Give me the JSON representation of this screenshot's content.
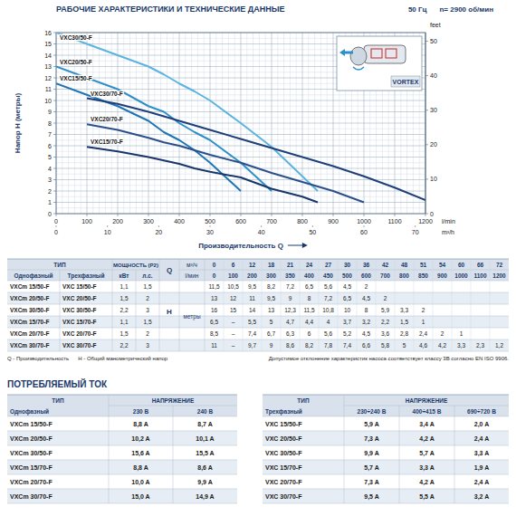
{
  "header": {
    "title": "РАБОЧИЕ ХАРАКТЕРИСТИКИ И ТЕХНИЧЕСКИЕ ДАННЫЕ",
    "frequency": "50 Гц",
    "speed": "n= 2900 об/мин"
  },
  "inset": {
    "label": "VORTEX"
  },
  "chart_data": {
    "type": "line",
    "ylabel": "Напор H (метры)",
    "y2label": "feet",
    "xlabel": "Производительность Q",
    "xunit": "l/min",
    "x2unit": "m³/h",
    "xlim": [
      0,
      1200
    ],
    "xticks": [
      0,
      100,
      200,
      300,
      400,
      500,
      600,
      700,
      800,
      900,
      1000,
      1100,
      1200
    ],
    "x2lim": [
      0,
      72
    ],
    "x2ticks": [
      0,
      10,
      20,
      30,
      40,
      50,
      60,
      70
    ],
    "ylim": [
      0,
      16
    ],
    "yticks": [
      0,
      1,
      2,
      3,
      4,
      5,
      6,
      7,
      8,
      9,
      10,
      11,
      12,
      13,
      14,
      15,
      16
    ],
    "y2lim": [
      0,
      52.49
    ],
    "y2ticks": [
      0,
      10,
      20,
      30,
      40,
      50
    ],
    "grid": true,
    "series": [
      {
        "name": "VXC30/50-F",
        "color": "#5bb3e0",
        "x": [
          0,
          100,
          200,
          300,
          350,
          400,
          450,
          500,
          600,
          700,
          800,
          850
        ],
        "values": [
          16,
          15,
          14,
          13,
          12.3,
          11.5,
          10.8,
          10,
          8,
          5.9,
          3.3,
          2
        ]
      },
      {
        "name": "VXC20/50-F",
        "color": "#2f8fc9",
        "x": [
          0,
          100,
          200,
          300,
          350,
          400,
          450,
          500,
          600,
          700
        ],
        "values": [
          13,
          12,
          11,
          9.5,
          9,
          8,
          7.2,
          6.5,
          4.5,
          2
        ]
      },
      {
        "name": "VXC15/50-F",
        "color": "#1f74b4",
        "x": [
          0,
          100,
          200,
          300,
          350,
          400,
          450,
          500,
          600
        ],
        "values": [
          11.5,
          10.5,
          9.5,
          8.2,
          7.2,
          6.5,
          5.6,
          4.5,
          2
        ]
      },
      {
        "name": "VXC30/70-F",
        "color": "#1e3f78",
        "x": [
          100,
          200,
          300,
          350,
          400,
          450,
          500,
          600,
          700,
          800,
          850,
          900,
          1000,
          1100,
          1200
        ],
        "values": [
          10.2,
          9.7,
          9,
          8.6,
          8.2,
          7.8,
          7.4,
          6.6,
          5.8,
          5,
          4.6,
          4.2,
          3.3,
          2.3,
          1.2
        ]
      },
      {
        "name": "VXC20/70-F",
        "color": "#2b4f8a",
        "x": [
          100,
          200,
          300,
          350,
          400,
          450,
          500,
          600,
          700,
          800,
          850,
          900,
          1000
        ],
        "values": [
          7.9,
          7.4,
          6.7,
          6.3,
          6,
          5.6,
          5.2,
          4.5,
          3.6,
          2.8,
          2.4,
          2,
          1
        ]
      },
      {
        "name": "VXC15/70-F",
        "color": "#18366a",
        "x": [
          100,
          200,
          300,
          350,
          400,
          450,
          500,
          600,
          700,
          800,
          850
        ],
        "values": [
          5.9,
          5.5,
          5,
          4.7,
          4.4,
          4,
          3.7,
          3.2,
          2.2,
          1.5,
          1
        ]
      }
    ]
  },
  "performance_table": {
    "headers": {
      "type": "ТИП",
      "power": "МОЩНОСТЬ (P2)",
      "single": "Однофазный",
      "three": "Трехфазный",
      "kw": "кВт",
      "hp": "л.с.",
      "q": "Q",
      "q_unit_m3h": "м³/ч",
      "q_unit_lmin": "l/мин",
      "h": "H",
      "h_unit": "метры"
    },
    "q_m3h": [
      0,
      6,
      12,
      18,
      21,
      24,
      27,
      30,
      36,
      42,
      48,
      51,
      54,
      60,
      66,
      72
    ],
    "q_lmin": [
      0,
      100,
      200,
      300,
      350,
      400,
      450,
      500,
      600,
      700,
      800,
      850,
      900,
      1000,
      1100,
      1200
    ],
    "rows": [
      {
        "single": "VXCm 15/50-F",
        "three": "VXC 15/50-F",
        "kw": "1,1",
        "hp": "1,5",
        "h": [
          "11,5",
          "10,5",
          "9,5",
          "8,2",
          "7,2",
          "6,5",
          "5,6",
          "4,5",
          "2",
          null,
          null,
          null,
          null,
          null,
          null,
          null
        ]
      },
      {
        "single": "VXCm 20/50-F",
        "three": "VXC 20/50-F",
        "kw": "1,5",
        "hp": "2",
        "h": [
          "13",
          "12",
          "11",
          "9,5",
          "9",
          "8",
          "7,2",
          "6,5",
          "4,5",
          "2",
          null,
          null,
          null,
          null,
          null,
          null
        ]
      },
      {
        "single": "VXCm 30/50-F",
        "three": "VXC 30/50-F",
        "kw": "2,2",
        "hp": "3",
        "h": [
          "16",
          "15",
          "14",
          "13",
          "12,3",
          "11,5",
          "10,8",
          "10",
          "8",
          "5,9",
          "3,3",
          "2",
          null,
          null,
          null,
          null
        ]
      },
      {
        "single": "VXCm 15/70-F",
        "three": "VXC 15/70-F",
        "kw": "1,1",
        "hp": "1,5",
        "h": [
          "6,5",
          "–",
          "5,5",
          "5",
          "4,7",
          "4,4",
          "4",
          "3,7",
          "3,2",
          "2,2",
          "1,5",
          "1",
          null,
          null,
          null,
          null
        ]
      },
      {
        "single": "VXCm 20/70-F",
        "three": "VXC 20/70-F",
        "kw": "1,5",
        "hp": "2",
        "h": [
          "8,5",
          "–",
          "7,4",
          "6,7",
          "6,3",
          "6",
          "5,6",
          "5,2",
          "4,5",
          "3,6",
          "2,8",
          "2,4",
          "2",
          "1",
          null,
          null
        ]
      },
      {
        "single": "VXCm 30/70-F",
        "three": "VXC 30/70-F",
        "kw": "2,2",
        "hp": "3",
        "h": [
          "11",
          "–",
          "9,7",
          "9",
          "8,6",
          "8,2",
          "7,8",
          "7,4",
          "6,6",
          "5,8",
          "5",
          "4,6",
          "4,2",
          "3,3",
          "2,3",
          "1,2"
        ]
      }
    ],
    "notes": [
      "Q - Производительность",
      "H - Общий манометрический напор",
      "Допустимое отклонение характеристик насоса соответствует классу 3B согласно EN ISO 9906."
    ]
  },
  "current": {
    "title": "ПОТРЕБЛЯЕМЫЙ ТОК",
    "tables": [
      {
        "headers": [
          "ТИП",
          "НАПРЯЖЕНИЕ"
        ],
        "columns": [
          "Однофазный",
          "230 В",
          "240 В"
        ],
        "rows": [
          [
            "VXCm 15/50-F",
            "8,8 A",
            "8,7 A"
          ],
          [
            "VXCm 20/50-F",
            "10,2 A",
            "10,1 A"
          ],
          [
            "VXCm 30/50-F",
            "15,6 A",
            "15,5 A"
          ],
          [
            "VXCm 15/70-F",
            "8,8 A",
            "8,6 A"
          ],
          [
            "VXCm 20/70-F",
            "10,0 A",
            "9,9 A"
          ],
          [
            "VXCm 30/70-F",
            "15,0 A",
            "14,9 A"
          ]
        ]
      },
      {
        "headers": [
          "ТИП",
          "НАПРЯЖЕНИЕ"
        ],
        "columns": [
          "Трехфазный",
          "230÷240 В",
          "400÷415 В",
          "690÷720 В"
        ],
        "rows": [
          [
            "VXC 15/50-F",
            "5,9 A",
            "3,4 A",
            "2,0 A"
          ],
          [
            "VXC 20/50-F",
            "7,3 A",
            "4,2 A",
            "2,4 A"
          ],
          [
            "VXC 30/50-F",
            "9,9 A",
            "5,7 A",
            "3,3 A"
          ],
          [
            "VXC 15/70-F",
            "5,7 A",
            "3,3 A",
            "1,9 A"
          ],
          [
            "VXC 20/70-F",
            "7,3 A",
            "4,2 A",
            "2,4 A"
          ],
          [
            "VXC 30/70-F",
            "9,5 A",
            "5,5 A",
            "3,2 A"
          ]
        ]
      }
    ]
  }
}
